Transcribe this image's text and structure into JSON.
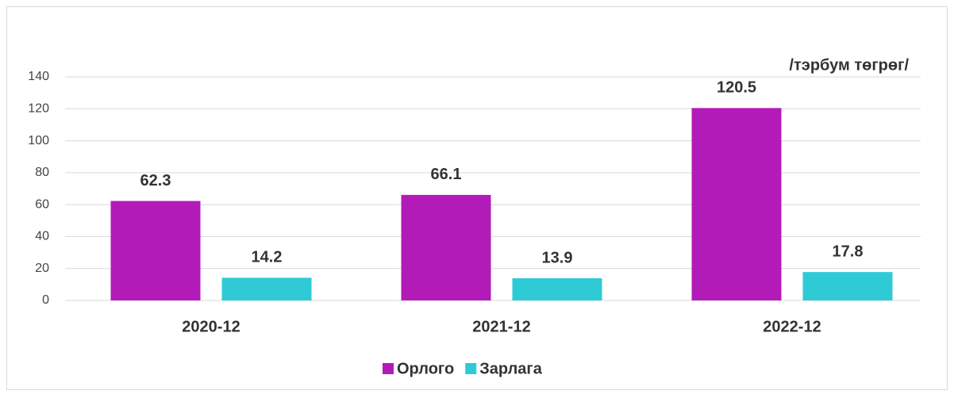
{
  "chart_data": {
    "type": "bar",
    "unit_label": "/тэрбум төгрөг/",
    "categories": [
      "2020-12",
      "2021-12",
      "2022-12"
    ],
    "series": [
      {
        "name": "Орлого",
        "color": "#b31bb8",
        "values": [
          62.3,
          66.1,
          120.5
        ]
      },
      {
        "name": "Зарлага",
        "color": "#2ecbd6",
        "values": [
          14.2,
          13.9,
          17.8
        ]
      }
    ],
    "ylim": [
      0,
      140
    ],
    "yticks": [
      0,
      20,
      40,
      60,
      80,
      100,
      120,
      140
    ],
    "grid": true,
    "legend": "bottom"
  }
}
